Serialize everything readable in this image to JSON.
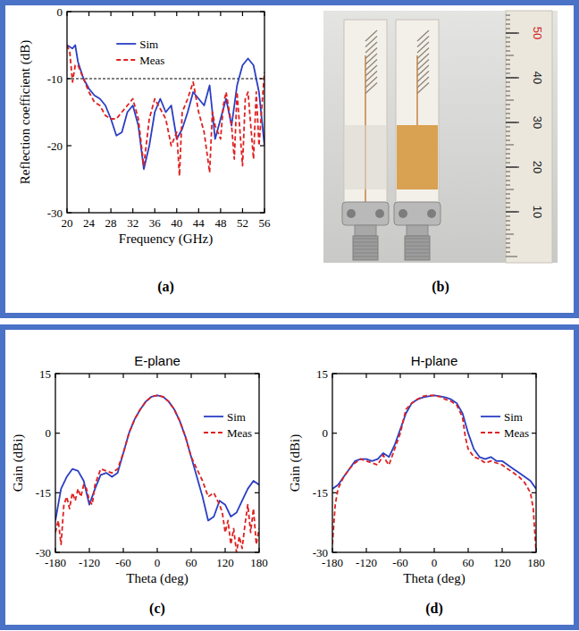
{
  "chart_data": [
    {
      "type": "line",
      "subtitle": "(a)",
      "xlabel": "Frequency (GHz)",
      "ylabel": "Reflection coefficient (dB)",
      "xlim": [
        20,
        56
      ],
      "xticks": [
        20,
        24,
        28,
        32,
        36,
        40,
        44,
        48,
        52,
        56
      ],
      "ylim": [
        -30,
        0
      ],
      "yticks": [
        -30,
        -20,
        -10,
        0
      ],
      "grid": false,
      "legend": "top",
      "reference_line": -10,
      "series": [
        {
          "name": "Sim",
          "color": "#2b3fc4",
          "line_style": "solid",
          "x": [
            20,
            21,
            21.5,
            22,
            23,
            24,
            25,
            26,
            27,
            28,
            29,
            30,
            31,
            32,
            33,
            34,
            35,
            36,
            37,
            38,
            39,
            40,
            41,
            42,
            43,
            44,
            45,
            46,
            47,
            48,
            49,
            50,
            51,
            52,
            53,
            54,
            55,
            56
          ],
          "values": [
            -5,
            -5.5,
            -5,
            -7.5,
            -10,
            -11.5,
            -12.5,
            -13,
            -14,
            -16,
            -18.5,
            -18,
            -15,
            -14,
            -17,
            -23.5,
            -20,
            -15,
            -13,
            -15,
            -14,
            -19,
            -17.5,
            -15,
            -12,
            -13,
            -14,
            -11,
            -19,
            -16,
            -13,
            -17,
            -11,
            -8,
            -7,
            -8,
            -12,
            -20
          ]
        },
        {
          "name": "Meas",
          "color": "#e02020",
          "line_style": "dashed",
          "x": [
            20,
            20.5,
            21,
            21.5,
            22,
            23,
            24,
            25,
            26,
            27,
            28,
            29,
            30,
            31,
            32,
            33,
            34,
            35,
            36,
            37,
            38,
            39,
            40,
            40.5,
            41,
            42,
            43,
            44,
            45,
            46,
            46.5,
            47,
            48,
            48.5,
            49,
            50,
            50.5,
            51,
            52,
            52.5,
            53,
            54,
            54.5,
            55,
            56
          ],
          "values": [
            -5,
            -6,
            -10.5,
            -8,
            -8,
            -10,
            -12,
            -13.5,
            -14,
            -15.5,
            -16,
            -16,
            -15,
            -14,
            -13,
            -16,
            -23,
            -16,
            -13,
            -14.5,
            -16,
            -20,
            -18,
            -24.5,
            -15,
            -13,
            -10.5,
            -15,
            -18,
            -24,
            -15,
            -17,
            -19,
            -14,
            -12,
            -17,
            -22,
            -12,
            -23,
            -13,
            -12,
            -22,
            -12,
            -20,
            -9
          ]
        }
      ]
    },
    {
      "type": "line",
      "title": "E-plane",
      "subtitle": "(c)",
      "xlabel": "Theta (deg)",
      "ylabel": "Gain (dBi)",
      "xlim": [
        -180,
        180
      ],
      "xticks": [
        -180,
        -120,
        -60,
        0,
        60,
        120,
        180
      ],
      "ylim": [
        -30,
        15
      ],
      "yticks": [
        -30,
        -15,
        0,
        15
      ],
      "grid": false,
      "legend": "upper-right",
      "series": [
        {
          "name": "Sim",
          "color": "#2b3fc4",
          "line_style": "solid",
          "x": [
            -180,
            -170,
            -160,
            -150,
            -140,
            -130,
            -120,
            -110,
            -100,
            -90,
            -80,
            -70,
            -60,
            -50,
            -40,
            -30,
            -20,
            -10,
            0,
            10,
            20,
            30,
            40,
            50,
            60,
            70,
            80,
            90,
            100,
            110,
            120,
            130,
            140,
            150,
            160,
            170,
            180
          ],
          "values": [
            -22,
            -14,
            -11,
            -9,
            -9.5,
            -12,
            -18,
            -14,
            -10.5,
            -10,
            -11,
            -10,
            -5,
            0,
            3.5,
            6,
            8,
            9.2,
            9.5,
            9.2,
            8,
            6,
            3,
            -1,
            -6,
            -11,
            -16,
            -22,
            -21,
            -17,
            -18,
            -21,
            -20,
            -17,
            -14,
            -12,
            -13
          ]
        },
        {
          "name": "Meas",
          "color": "#e02020",
          "line_style": "dashed",
          "x": [
            -180,
            -175,
            -170,
            -165,
            -160,
            -155,
            -150,
            -145,
            -140,
            -135,
            -130,
            -125,
            -120,
            -115,
            -110,
            -100,
            -90,
            -80,
            -70,
            -60,
            -50,
            -40,
            -30,
            -20,
            -10,
            0,
            10,
            20,
            30,
            40,
            50,
            60,
            70,
            80,
            90,
            100,
            110,
            115,
            120,
            125,
            130,
            135,
            140,
            145,
            150,
            155,
            160,
            165,
            170,
            175,
            180
          ],
          "values": [
            -25,
            -22,
            -28,
            -18,
            -16,
            -19,
            -15,
            -17,
            -14,
            -16,
            -13,
            -14,
            -17,
            -18,
            -13,
            -9,
            -9.5,
            -10,
            -9,
            -5,
            0,
            3.5,
            6,
            8,
            9.2,
            9.5,
            9.2,
            8,
            6,
            3,
            -1,
            -6,
            -9,
            -12,
            -16,
            -15,
            -18,
            -20,
            -25,
            -22,
            -28,
            -24,
            -30,
            -26,
            -29,
            -23,
            -18,
            -25,
            -19,
            -28,
            -24
          ]
        }
      ]
    },
    {
      "type": "line",
      "title": "H-plane",
      "subtitle": "(d)",
      "xlabel": "Theta (deg)",
      "ylabel": "Gain (dBi)",
      "xlim": [
        -180,
        180
      ],
      "xticks": [
        -180,
        -120,
        -60,
        0,
        60,
        120,
        180
      ],
      "ylim": [
        -30,
        15
      ],
      "yticks": [
        -30,
        -15,
        0,
        15
      ],
      "grid": false,
      "legend": "upper-right",
      "series": [
        {
          "name": "Sim",
          "color": "#2b3fc4",
          "line_style": "solid",
          "x": [
            -180,
            -170,
            -160,
            -150,
            -140,
            -130,
            -120,
            -110,
            -100,
            -90,
            -80,
            -70,
            -60,
            -50,
            -40,
            -30,
            -20,
            -10,
            0,
            10,
            20,
            30,
            40,
            50,
            60,
            70,
            80,
            90,
            100,
            110,
            120,
            130,
            140,
            150,
            160,
            170,
            180
          ],
          "values": [
            -14,
            -13,
            -11,
            -9,
            -7,
            -6.5,
            -6.5,
            -7,
            -6.5,
            -5,
            -6,
            -3,
            1,
            5,
            7.5,
            8.5,
            9,
            9.3,
            9.5,
            9.3,
            9,
            8.5,
            7.5,
            5,
            0,
            -4,
            -6,
            -6.5,
            -6,
            -7,
            -7,
            -8,
            -9,
            -10,
            -11,
            -12,
            -14
          ]
        },
        {
          "name": "Meas",
          "color": "#e02020",
          "line_style": "dashed",
          "x": [
            -180,
            -175,
            -170,
            -160,
            -150,
            -140,
            -130,
            -120,
            -110,
            -100,
            -90,
            -85,
            -80,
            -70,
            -60,
            -55,
            -50,
            -40,
            -30,
            -20,
            -10,
            0,
            10,
            20,
            30,
            40,
            50,
            55,
            60,
            70,
            80,
            90,
            100,
            110,
            120,
            130,
            140,
            150,
            160,
            170,
            175,
            180
          ],
          "values": [
            -28,
            -18,
            -14,
            -11,
            -9,
            -7.5,
            -6.5,
            -7,
            -7.5,
            -8,
            -5.5,
            -7,
            -8,
            -4,
            0,
            3,
            6,
            7.5,
            8.5,
            9.3,
            9.5,
            9.5,
            9.2,
            8.5,
            8,
            7,
            4,
            -1,
            -4,
            -6,
            -6.5,
            -7.5,
            -7,
            -7.5,
            -8,
            -9,
            -10,
            -11,
            -12.5,
            -15,
            -19,
            -30
          ]
        }
      ]
    }
  ],
  "photo": {
    "caption": "(b)",
    "ruler_labels": [
      10,
      20,
      30,
      40,
      50
    ]
  }
}
